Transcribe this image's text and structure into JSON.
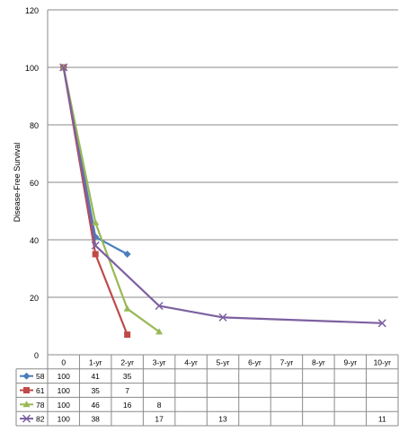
{
  "chart_data": {
    "type": "line",
    "title": "",
    "xlabel": "",
    "ylabel": "Disease-Free Survival",
    "ylim": [
      0,
      120
    ],
    "yticks": [
      "0",
      "20",
      "40",
      "60",
      "80",
      "100",
      "120"
    ],
    "grid": "horizontal",
    "legend": "data-table",
    "categories": [
      "0",
      "1-yr",
      "2-yr",
      "3-yr",
      "4-yr",
      "5-yr",
      "6-yr",
      "7-yr",
      "8-yr",
      "9-yr",
      "10-yr"
    ],
    "series": [
      {
        "name": "58",
        "color": "#4a7ebb",
        "marker": "diamond",
        "values": [
          100,
          41,
          35,
          null,
          null,
          null,
          null,
          null,
          null,
          null,
          null
        ]
      },
      {
        "name": "61",
        "color": "#be4b48",
        "marker": "square",
        "values": [
          100,
          35,
          7,
          null,
          null,
          null,
          null,
          null,
          null,
          null,
          null
        ]
      },
      {
        "name": "78",
        "color": "#98b954",
        "marker": "triangle",
        "values": [
          100,
          46,
          16,
          8,
          null,
          null,
          null,
          null,
          null,
          null,
          null
        ]
      },
      {
        "name": "82",
        "color": "#7d60a0",
        "marker": "x",
        "values": [
          100,
          38,
          null,
          17,
          null,
          13,
          null,
          null,
          null,
          null,
          11
        ]
      }
    ]
  }
}
